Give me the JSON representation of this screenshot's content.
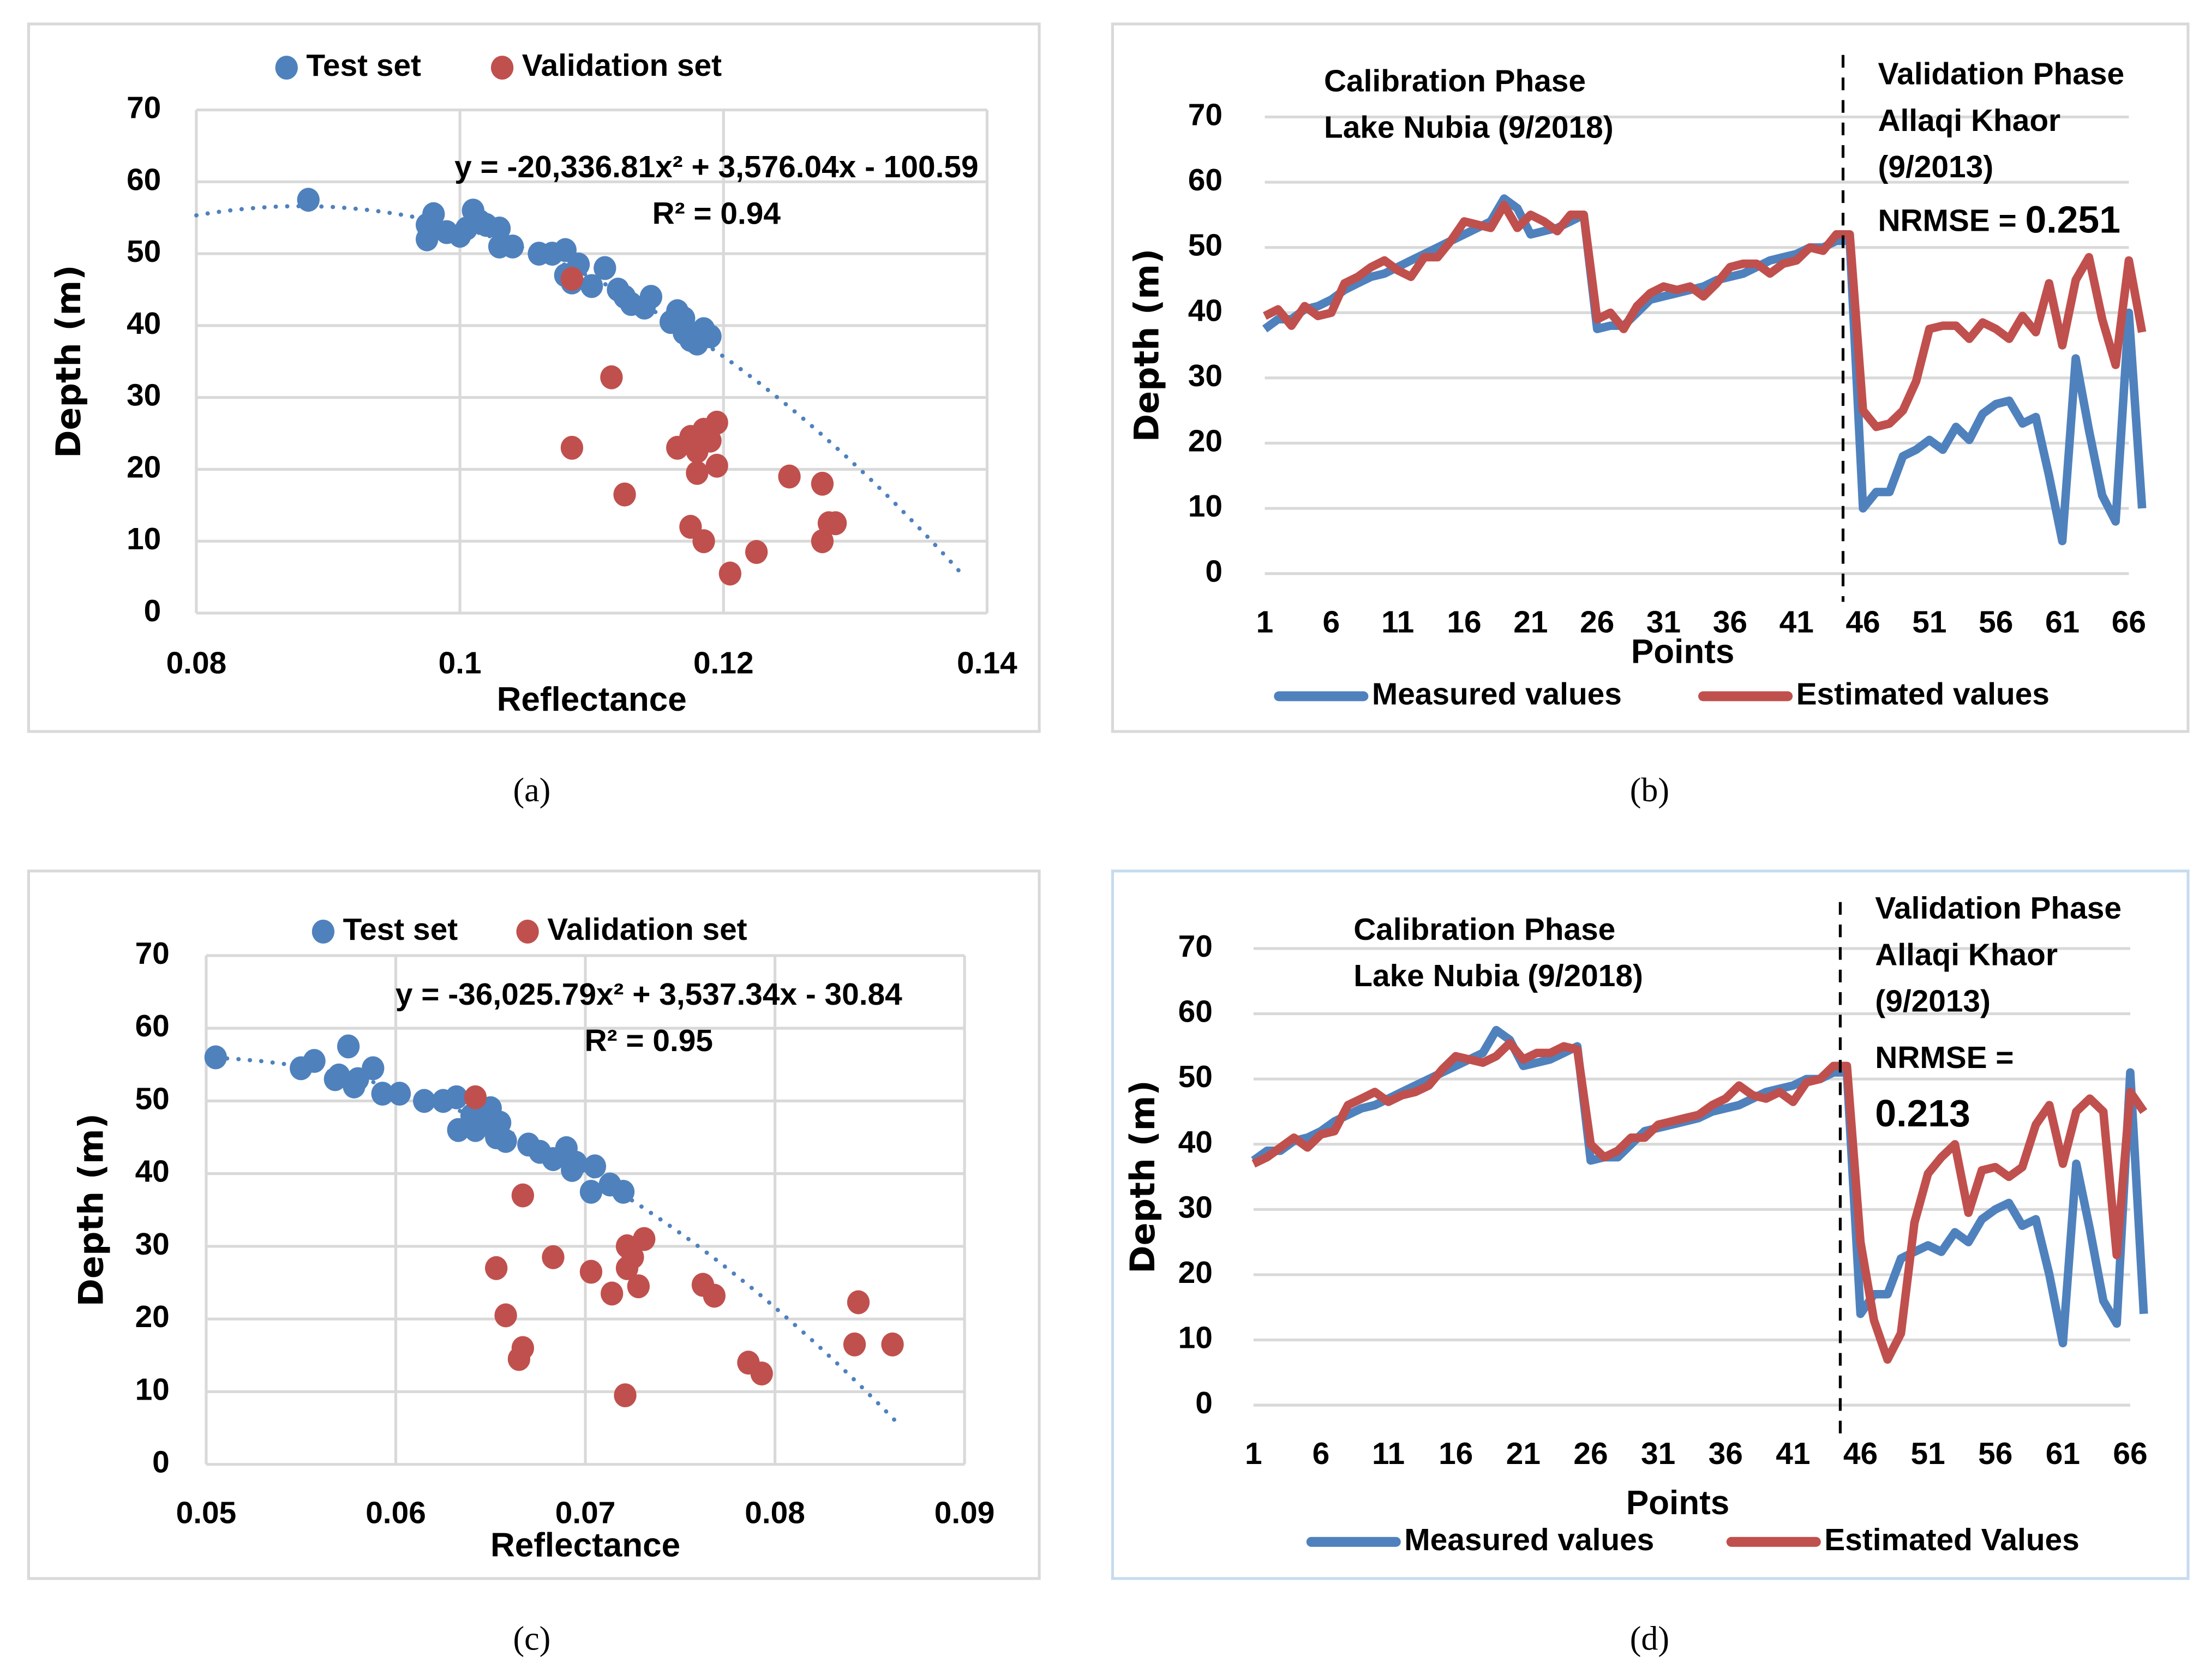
{
  "colors": {
    "measured": "#4F81BD",
    "estimated": "#C0504D",
    "grid": "#D9D9D9"
  },
  "chart_data": [
    {
      "type": "scatter",
      "panel_label": "(a)",
      "xlabel": "Reflectance",
      "ylabel": "Depth (m)",
      "xlim": [
        0.08,
        0.14
      ],
      "ylim": [
        0,
        70
      ],
      "xticks": [
        "0.08",
        "0.1",
        "0.12",
        "0.14"
      ],
      "yticks": [
        "0",
        "10",
        "20",
        "30",
        "40",
        "50",
        "60",
        "70"
      ],
      "legend": [
        "Test set",
        "Validation set"
      ],
      "legend_position": "top",
      "grid": true,
      "trendline": {
        "equation": "y = -20,336.81x² + 3,576.04x - 100.59",
        "r2": "R² = 0.94",
        "coef": [
          -20336.81,
          3576.04,
          -100.59
        ],
        "xrange": [
          0.08,
          0.138
        ]
      },
      "series": [
        {
          "name": "Test set",
          "points": [
            [
              0.0885,
              57.5
            ],
            [
              0.0975,
              54
            ],
            [
              0.098,
              55.5
            ],
            [
              0.0975,
              52
            ],
            [
              0.099,
              53
            ],
            [
              0.1,
              52.5
            ],
            [
              0.1005,
              53.5
            ],
            [
              0.101,
              56
            ],
            [
              0.1015,
              54.5
            ],
            [
              0.102,
              54
            ],
            [
              0.103,
              53.5
            ],
            [
              0.103,
              51
            ],
            [
              0.104,
              51
            ],
            [
              0.106,
              50
            ],
            [
              0.107,
              50
            ],
            [
              0.108,
              50.5
            ],
            [
              0.108,
              47
            ],
            [
              0.109,
              48.5
            ],
            [
              0.1085,
              46
            ],
            [
              0.11,
              45.5
            ],
            [
              0.111,
              48
            ],
            [
              0.112,
              45
            ],
            [
              0.1125,
              44
            ],
            [
              0.113,
              43
            ],
            [
              0.114,
              42.5
            ],
            [
              0.1145,
              44
            ],
            [
              0.116,
              40.5
            ],
            [
              0.1165,
              42
            ],
            [
              0.117,
              41
            ],
            [
              0.117,
              39
            ],
            [
              0.1175,
              38
            ],
            [
              0.118,
              37.5
            ],
            [
              0.1185,
              39.5
            ],
            [
              0.119,
              38.5
            ]
          ]
        },
        {
          "name": "Validation set",
          "points": [
            [
              0.1085,
              46.5
            ],
            [
              0.1085,
              23
            ],
            [
              0.1115,
              32.8
            ],
            [
              0.1125,
              16.5
            ],
            [
              0.1165,
              23
            ],
            [
              0.1175,
              24.5
            ],
            [
              0.118,
              22.5
            ],
            [
              0.1185,
              25.5
            ],
            [
              0.119,
              24
            ],
            [
              0.1195,
              26.5
            ],
            [
              0.118,
              19.5
            ],
            [
              0.1195,
              20.5
            ],
            [
              0.1175,
              12
            ],
            [
              0.1185,
              10
            ],
            [
              0.1205,
              5.5
            ],
            [
              0.1225,
              8.5
            ],
            [
              0.125,
              19
            ],
            [
              0.1275,
              18
            ],
            [
              0.1275,
              10
            ],
            [
              0.1285,
              12.5
            ],
            [
              0.128,
              12.5
            ]
          ]
        }
      ]
    },
    {
      "type": "line",
      "panel_label": "(b)",
      "xlabel": "Points",
      "ylabel": "Depth (m)",
      "ylim": [
        0,
        70
      ],
      "yticks": [
        "0",
        "10",
        "20",
        "30",
        "40",
        "50",
        "60",
        "70"
      ],
      "xticks": [
        "1",
        "6",
        "11",
        "16",
        "21",
        "26",
        "31",
        "36",
        "41",
        "46",
        "51",
        "56",
        "61",
        "66"
      ],
      "n_points": 67,
      "divider_after_point": 44.5,
      "grid": true,
      "legend_position": "bottom",
      "annotations": {
        "calibration": [
          "Calibration Phase",
          "Lake Nubia (9/2018)"
        ],
        "validation": [
          "Validation Phase",
          "Allaqi Khaor",
          "(9/2013)"
        ],
        "nrmse_label": "NRMSE = ",
        "nrmse_value": "0.251"
      },
      "series": [
        {
          "name": "Measured values",
          "values": [
            37.5,
            39,
            39,
            40.5,
            41,
            42,
            43.5,
            44.5,
            45.5,
            46,
            47,
            48,
            49,
            50,
            51,
            52,
            53,
            54,
            57.5,
            56,
            52,
            52.5,
            53,
            54,
            55,
            37.5,
            38,
            38,
            40,
            42,
            42.5,
            43,
            43.5,
            44,
            45,
            45.5,
            46,
            47,
            48,
            48.5,
            49,
            50,
            50,
            51,
            51,
            10,
            12.5,
            12.5,
            18,
            19,
            20.5,
            19,
            22.5,
            20.5,
            24.5,
            26,
            26.5,
            23,
            24,
            15,
            5,
            33,
            22,
            12,
            8,
            40,
            10
          ]
        },
        {
          "name": "Estimated values",
          "values": [
            39.5,
            40.5,
            38,
            41,
            39.5,
            40,
            44.5,
            45.5,
            47,
            48,
            46.5,
            45.5,
            48.5,
            48.5,
            51,
            54,
            53.5,
            53,
            56.5,
            53,
            55,
            54,
            52.5,
            55,
            55,
            39,
            40,
            37.5,
            41,
            43,
            44,
            43.5,
            44,
            42.5,
            44.5,
            47,
            47.5,
            47.5,
            46,
            47.5,
            48,
            50,
            49.5,
            52,
            52,
            25,
            22.5,
            23,
            25,
            29.5,
            37.5,
            38,
            38,
            36,
            38.5,
            37.5,
            36,
            39.5,
            37,
            44.5,
            35,
            45,
            48.5,
            39,
            32,
            48,
            37
          ]
        }
      ]
    },
    {
      "type": "scatter",
      "panel_label": "(c)",
      "xlabel": "Reflectance",
      "ylabel": "Depth (m)",
      "xlim": [
        0.05,
        0.09
      ],
      "ylim": [
        0,
        70
      ],
      "xticks": [
        "0.05",
        "0.06",
        "0.07",
        "0.08",
        "0.09"
      ],
      "yticks": [
        "0",
        "10",
        "20",
        "30",
        "40",
        "50",
        "60",
        "70"
      ],
      "legend": [
        "Test set",
        "Validation set"
      ],
      "legend_position": "top",
      "grid": true,
      "trendline": {
        "equation": "y = -36,025.79x² + 3,537.34x - 30.84",
        "r2": "R² = 0.95",
        "coef": [
          -36025.79,
          3537.34,
          -30.84
        ],
        "xrange": [
          0.0505,
          0.0866
        ]
      },
      "series": [
        {
          "name": "Test set",
          "points": [
            [
              0.0505,
              56
            ],
            [
              0.055,
              54.5
            ],
            [
              0.0557,
              55.5
            ],
            [
              0.0568,
              53
            ],
            [
              0.057,
              53.5
            ],
            [
              0.0575,
              57.5
            ],
            [
              0.0578,
              52
            ],
            [
              0.058,
              53
            ],
            [
              0.0588,
              54.5
            ],
            [
              0.0593,
              51
            ],
            [
              0.0602,
              51
            ],
            [
              0.0615,
              50
            ],
            [
              0.0625,
              50
            ],
            [
              0.0632,
              50.5
            ],
            [
              0.0633,
              46
            ],
            [
              0.064,
              48
            ],
            [
              0.0642,
              46
            ],
            [
              0.0648,
              47
            ],
            [
              0.065,
              49
            ],
            [
              0.0653,
              45
            ],
            [
              0.0655,
              47
            ],
            [
              0.0658,
              44.5
            ],
            [
              0.067,
              44
            ],
            [
              0.0676,
              43
            ],
            [
              0.0683,
              42
            ],
            [
              0.069,
              43.5
            ],
            [
              0.0693,
              40.5
            ],
            [
              0.0695,
              41.5
            ],
            [
              0.0703,
              37.5
            ],
            [
              0.0705,
              41
            ],
            [
              0.0713,
              38.5
            ],
            [
              0.072,
              37.5
            ]
          ]
        },
        {
          "name": "Validation set",
          "points": [
            [
              0.0642,
              50.5
            ],
            [
              0.0653,
              27
            ],
            [
              0.0658,
              20.5
            ],
            [
              0.0665,
              14.5
            ],
            [
              0.0667,
              16
            ],
            [
              0.0667,
              37
            ],
            [
              0.0683,
              28.5
            ],
            [
              0.0703,
              26.5
            ],
            [
              0.0714,
              23.5
            ],
            [
              0.0722,
              30
            ],
            [
              0.0722,
              27
            ],
            [
              0.0725,
              28.5
            ],
            [
              0.0728,
              24.5
            ],
            [
              0.0731,
              31
            ],
            [
              0.0762,
              24.7
            ],
            [
              0.0768,
              23.2
            ],
            [
              0.0786,
              14
            ],
            [
              0.0793,
              12.5
            ],
            [
              0.0721,
              9.5
            ],
            [
              0.0842,
              16.5
            ],
            [
              0.0844,
              22.3
            ],
            [
              0.0862,
              16.5
            ]
          ]
        }
      ]
    },
    {
      "type": "line",
      "panel_label": "(d)",
      "xlabel": "Points",
      "ylabel": "Depth (m)",
      "ylim": [
        0,
        70
      ],
      "yticks": [
        "0",
        "10",
        "20",
        "30",
        "40",
        "50",
        "60",
        "70"
      ],
      "xticks": [
        "1",
        "6",
        "11",
        "16",
        "21",
        "26",
        "31",
        "36",
        "41",
        "46",
        "51",
        "56",
        "61",
        "66"
      ],
      "n_points": 67,
      "divider_after_point": 44.5,
      "grid": true,
      "legend_position": "bottom",
      "annotations": {
        "calibration": [
          "Calibration Phase",
          "Lake Nubia (9/2018)"
        ],
        "validation": [
          "Validation Phase",
          "Allaqi Khaor",
          "(9/2013)"
        ],
        "nrmse_label": "NRMSE =",
        "nrmse_value": "0.213"
      },
      "series": [
        {
          "name": "Measured values",
          "values": [
            37.5,
            39,
            39,
            40.5,
            41,
            42,
            43.5,
            44.5,
            45.5,
            46,
            47,
            48,
            49,
            50,
            51,
            52,
            53,
            54,
            57.5,
            56,
            52,
            52.5,
            53,
            54,
            55,
            37.5,
            38,
            38,
            40,
            42,
            42.5,
            43,
            43.5,
            44,
            45,
            45.5,
            46,
            47,
            48,
            48.5,
            49,
            50,
            50,
            51,
            51,
            14,
            17,
            17,
            22.5,
            23.5,
            24.5,
            23.5,
            26.5,
            25,
            28.5,
            30,
            31,
            27.5,
            28.5,
            20,
            9.5,
            37,
            27,
            16,
            12.5,
            51,
            14
          ]
        },
        {
          "name": "Estimated Values",
          "values": [
            37,
            38,
            39.5,
            41,
            39.5,
            41.5,
            42,
            46,
            47,
            48,
            46.5,
            47.5,
            48,
            49,
            51.5,
            53.5,
            53,
            52.5,
            53.5,
            55.5,
            53,
            54,
            54,
            55,
            54.5,
            40,
            38,
            39,
            41,
            41,
            43,
            43.5,
            44,
            44.5,
            46,
            47,
            49,
            47.5,
            47,
            48,
            46.5,
            49.5,
            50,
            52,
            52,
            25,
            13,
            7,
            11,
            28,
            35.5,
            38,
            40,
            29.5,
            36,
            36.5,
            35,
            36.5,
            43,
            46,
            37,
            45,
            47,
            45,
            23,
            48,
            45
          ]
        }
      ]
    }
  ]
}
